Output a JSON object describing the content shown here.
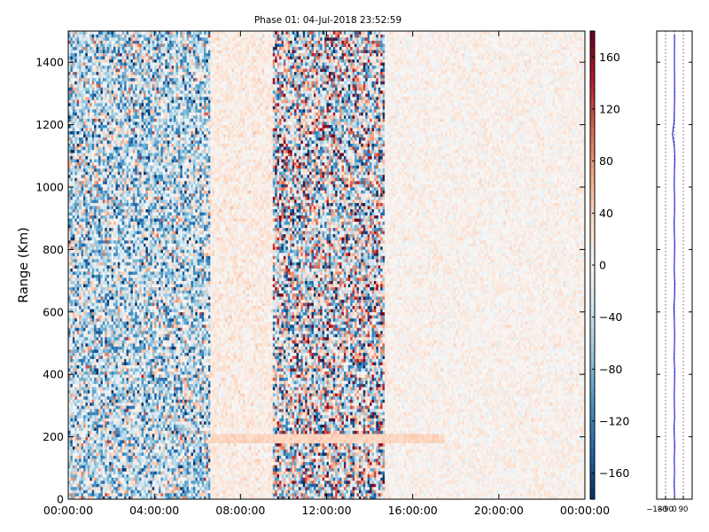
{
  "chart_data": [
    {
      "type": "heatmap",
      "title": "Phase 01: 04-Jul-2018 23:52:59",
      "xlabel": "",
      "ylabel": "Range (Km)",
      "x_tick_labels": [
        "00:00:00",
        "04:00:00",
        "08:00:00",
        "12:00:00",
        "16:00:00",
        "20:00:00",
        "00:00:00"
      ],
      "x_range_hours": [
        0,
        24
      ],
      "y_ticks": [
        0,
        200,
        400,
        600,
        800,
        1000,
        1200,
        1400
      ],
      "ylim": [
        0,
        1500
      ],
      "colorbar": {
        "ticks": [
          160,
          120,
          80,
          40,
          0,
          -40,
          -80,
          -120,
          -160
        ],
        "tick_labels": [
          "160",
          "120",
          "80",
          "40",
          "0",
          "−40",
          "−80",
          "−120",
          "−160"
        ],
        "range": [
          -180,
          180
        ],
        "colormap": "RdBu_r",
        "low_color": "#053061",
        "mid_color": "#f7f7f7",
        "high_color": "#67001f"
      },
      "regions": [
        {
          "x_hours": [
            0,
            6.6
          ],
          "range_km": [
            0,
            1500
          ],
          "phase_mean": -40,
          "phase_spread": 90
        },
        {
          "x_hours": [
            6.6,
            9.5
          ],
          "range_km": [
            0,
            1500
          ],
          "phase_mean": 15,
          "phase_spread": 20
        },
        {
          "x_hours": [
            9.5,
            14.7
          ],
          "range_km": [
            0,
            1500
          ],
          "phase_mean": -10,
          "phase_spread": 130
        },
        {
          "x_hours": [
            14.7,
            24
          ],
          "range_km": [
            0,
            1500
          ],
          "phase_mean": 8,
          "phase_spread": 18
        },
        {
          "x_hours": [
            6.6,
            17.5
          ],
          "range_km": [
            180,
            215
          ],
          "phase_mean": 40,
          "phase_spread": 8
        }
      ],
      "grid": false
    },
    {
      "type": "line",
      "title": "",
      "xlabel": "",
      "ylabel": "",
      "x_tick_labels": [
        "−180",
        "−90",
        "0",
        "90"
      ],
      "x_ticks": [
        -180,
        -90,
        0,
        90
      ],
      "xlim": [
        -180,
        180
      ],
      "ylim": [
        0,
        1500
      ],
      "y_ticks": [
        0,
        200,
        400,
        600,
        800,
        1000,
        1200,
        1400
      ],
      "grid": true,
      "series": [
        {
          "color": "#0000cc",
          "x": [
            2,
            -3,
            1,
            -2,
            3,
            -1,
            -4,
            2,
            0,
            -2,
            1,
            3,
            -3,
            0,
            2,
            -1,
            -5,
            1,
            4,
            -2,
            0,
            3,
            -1,
            -3,
            2,
            1,
            -2,
            0,
            4,
            -1,
            -20,
            -3,
            2,
            0,
            1
          ],
          "y": [
            10,
            50,
            90,
            130,
            170,
            200,
            230,
            260,
            290,
            330,
            370,
            410,
            450,
            490,
            530,
            570,
            610,
            650,
            690,
            730,
            770,
            810,
            850,
            890,
            930,
            970,
            1010,
            1050,
            1090,
            1130,
            1170,
            1210,
            1290,
            1400,
            1490
          ]
        }
      ]
    }
  ]
}
